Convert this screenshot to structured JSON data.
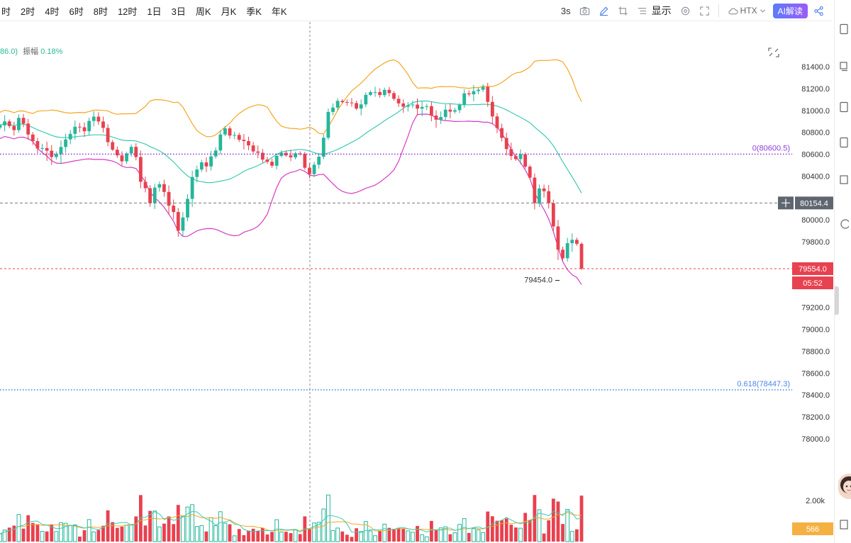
{
  "toolbar": {
    "timeframes": [
      "时",
      "2时",
      "4时",
      "6时",
      "8时",
      "12时",
      "1日",
      "3日",
      "周K",
      "月K",
      "季K",
      "年K"
    ],
    "refresh": "3s",
    "display": "显示",
    "exchange": "HTX",
    "ai_button": "AI解读",
    "icons": [
      "camera-icon",
      "pencil-icon",
      "crop-icon",
      "list-icon",
      "settings-icon",
      "fullscreen-icon",
      "cloud-icon",
      "chevron-down-icon",
      "share-icon"
    ]
  },
  "legend": {
    "value": "86.0)",
    "amplitude_label": "振幅",
    "amplitude_value": "0.18%"
  },
  "price_axis": {
    "ticks": [
      "81400.0",
      "81200.0",
      "81000.0",
      "80800.0",
      "80600.0",
      "80400.0",
      "80000.0",
      "79800.0",
      "79200.0",
      "79000.0",
      "78800.0",
      "78600.0",
      "78400.0",
      "78200.0",
      "78000.0"
    ],
    "crosshair_price": "80154.4",
    "last_price": "79554.0",
    "countdown": "05:52",
    "volume_tick": "2.00k",
    "volume_value": "566"
  },
  "fib_levels": [
    {
      "label": "0(80600.5)",
      "price": 80600.5,
      "color": "#8e3ed6"
    },
    {
      "label": "0.618(78447.3)",
      "price": 78447.3,
      "color": "#4a86e8"
    }
  ],
  "low_marker": {
    "label": "79454.0",
    "price": 79454.0
  },
  "colors": {
    "up": "#26b69a",
    "down": "#e8414f",
    "boll_upper": "#f5a623",
    "boll_mid": "#3ccbb1",
    "boll_lower": "#d63bc4",
    "vol_ma1": "#f5a623",
    "vol_ma2": "#3ccbb1"
  },
  "chart_data": {
    "type": "candlestick",
    "ohlc_close": [
      80863,
      80900,
      80857,
      80820,
      80932,
      80880,
      80780,
      80720,
      80652,
      80656,
      80632,
      80574,
      80602,
      80666,
      80735,
      80786,
      80851,
      80846,
      80810,
      80904,
      80943,
      80899,
      80840,
      80710,
      80641,
      80589,
      80535,
      80607,
      80667,
      80574,
      80348,
      80289,
      80153,
      80295,
      80326,
      80255,
      80130,
      80072,
      79901,
      80022,
      80192,
      80392,
      80460,
      80525,
      80488,
      80580,
      80634,
      80780,
      80836,
      80770,
      80776,
      80732,
      80720,
      80680,
      80625,
      80613,
      80551,
      80531,
      80495,
      80584,
      80613,
      80589,
      80571,
      80608,
      80603,
      80476,
      80418,
      80504,
      80577,
      80750,
      80986,
      81026,
      81087,
      81076,
      81072,
      81067,
      81017,
      81055,
      81142,
      81167,
      81168,
      81140,
      81188,
      81158,
      81106,
      81064,
      81034,
      81047,
      81053,
      81016,
      81032,
      81039,
      80953,
      80915,
      80940,
      81007,
      80989,
      81002,
      81050,
      81156,
      81147,
      81176,
      81189,
      81215,
      81078,
      80945,
      80839,
      80749,
      80647,
      80583,
      80555,
      80600,
      80486,
      80386,
      80153,
      80287,
      80262,
      80152,
      79940,
      79728,
      79649,
      79787,
      79818,
      79781,
      79554
    ],
    "y_range": [
      77800,
      81550
    ],
    "volume_axis": [
      "2.00k"
    ],
    "last_price": 79554.0,
    "crosshair_price": 80154.4
  }
}
